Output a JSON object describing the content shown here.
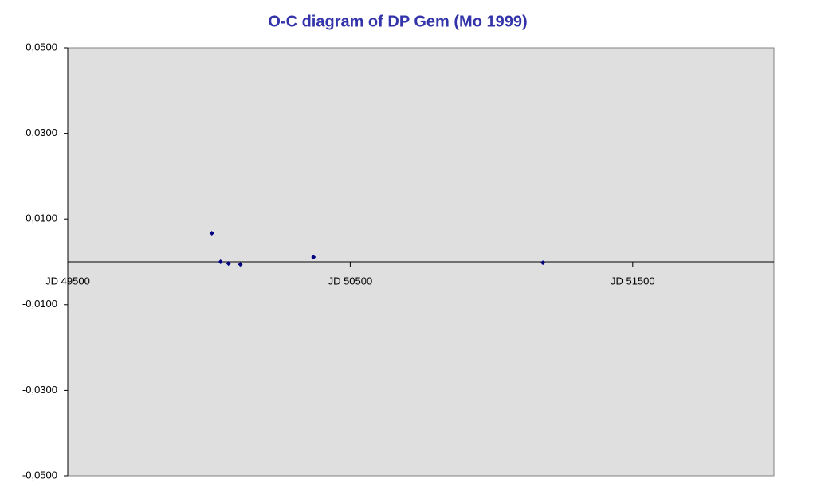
{
  "chart_data": {
    "type": "scatter",
    "title": "O-C diagram of DP Gem  (Mo 1999)",
    "x": [
      50010,
      50041,
      50069,
      50111,
      50370,
      51182
    ],
    "values": [
      0.0067,
      0.0,
      -0.0004,
      -0.0006,
      0.0011,
      -0.0002
    ],
    "color": "#000080",
    "xlim": [
      49500,
      52000
    ],
    "xticks": [
      {
        "value": 49500,
        "label": "JD 49500"
      },
      {
        "value": 50500,
        "label": "JD 50500"
      },
      {
        "value": 51500,
        "label": "JD 51500"
      }
    ],
    "ylim": [
      -0.05,
      0.05
    ],
    "yticks": [
      {
        "value": 0.05,
        "label": "0,0500"
      },
      {
        "value": 0.03,
        "label": "0,0300"
      },
      {
        "value": 0.01,
        "label": "0,0100"
      },
      {
        "value": -0.01,
        "label": "-0,0100"
      },
      {
        "value": -0.03,
        "label": "-0,0300"
      },
      {
        "value": -0.05,
        "label": "-0,0500"
      }
    ],
    "grid": false
  }
}
